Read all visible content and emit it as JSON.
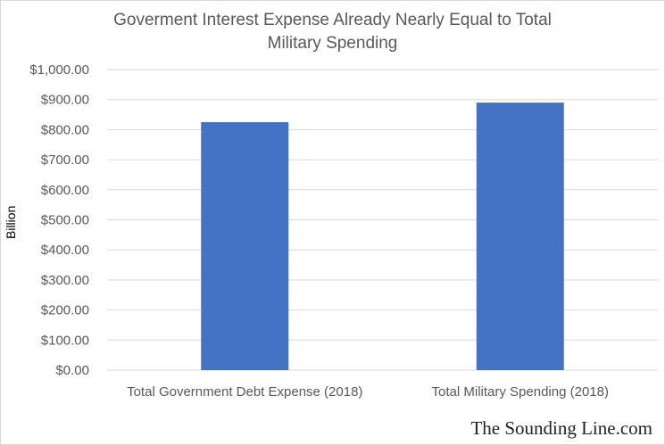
{
  "chart_data": {
    "type": "bar",
    "title_lines": [
      "Goverment Interest Expense Already Nearly Equal to Total",
      "Military Spending"
    ],
    "ylabel": "Billion",
    "xlabel": "",
    "categories": [
      "Total Government Debt Expense (2018)",
      "Total Military Spending (2018)"
    ],
    "values": [
      825,
      890
    ],
    "ylim": [
      0,
      1000
    ],
    "y_ticks": [
      0,
      100,
      200,
      300,
      400,
      500,
      600,
      700,
      800,
      900,
      1000
    ],
    "y_tick_labels": [
      "$0.00",
      "$100.00",
      "$200.00",
      "$300.00",
      "$400.00",
      "$500.00",
      "$600.00",
      "$700.00",
      "$800.00",
      "$900.00",
      "$1,000.00"
    ],
    "grid": true,
    "legend": "none",
    "bar_color": "#4472c4",
    "grid_color": "#d9d9d9"
  },
  "watermark": "The Sounding Line.com"
}
